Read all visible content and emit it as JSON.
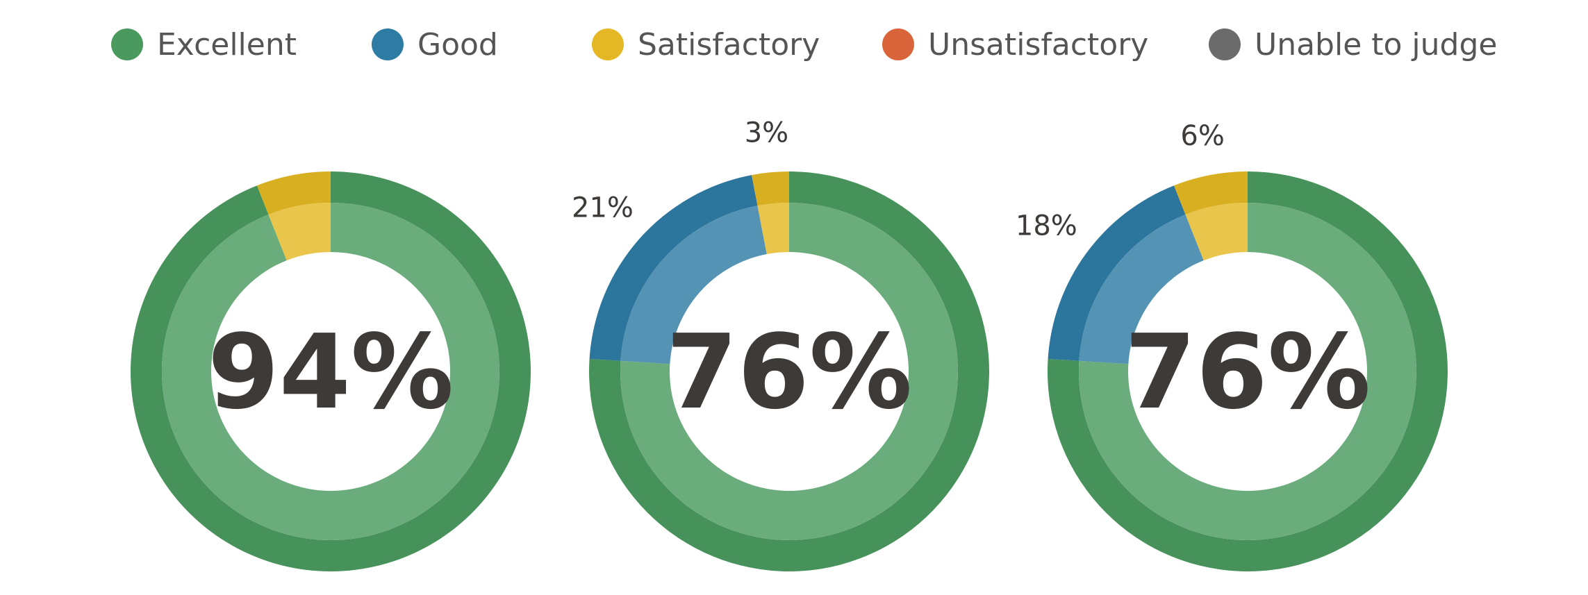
{
  "chart_data": {
    "type": "pie",
    "legend": {
      "position": "top",
      "entries": [
        {
          "label": "Excellent",
          "color": "#4a9a5f"
        },
        {
          "label": "Good",
          "color": "#2e7ba4"
        },
        {
          "label": "Satisfactory",
          "color": "#e4b824"
        },
        {
          "label": "Unsatisfactory",
          "color": "#d9643a"
        },
        {
          "label": "Unable to judge",
          "color": "#6b6b6b"
        }
      ]
    },
    "charts": [
      {
        "center_label": "94%",
        "slices": [
          {
            "category": "Excellent",
            "value": 94
          },
          {
            "category": "Satisfactory",
            "value": 6
          }
        ],
        "labels": []
      },
      {
        "center_label": "76%",
        "slices": [
          {
            "category": "Excellent",
            "value": 76
          },
          {
            "category": "Good",
            "value": 21
          },
          {
            "category": "Satisfactory",
            "value": 3
          }
        ],
        "labels": [
          {
            "category": "Good",
            "text": "21%"
          },
          {
            "category": "Satisfactory",
            "text": "3%"
          }
        ]
      },
      {
        "center_label": "76%",
        "slices": [
          {
            "category": "Excellent",
            "value": 76
          },
          {
            "category": "Good",
            "value": 18
          },
          {
            "category": "Satisfactory",
            "value": 6
          }
        ],
        "labels": [
          {
            "category": "Good",
            "text": "18%"
          },
          {
            "category": "Satisfactory",
            "text": "6%"
          }
        ]
      }
    ],
    "slice_order": "counterclockwise from top"
  }
}
